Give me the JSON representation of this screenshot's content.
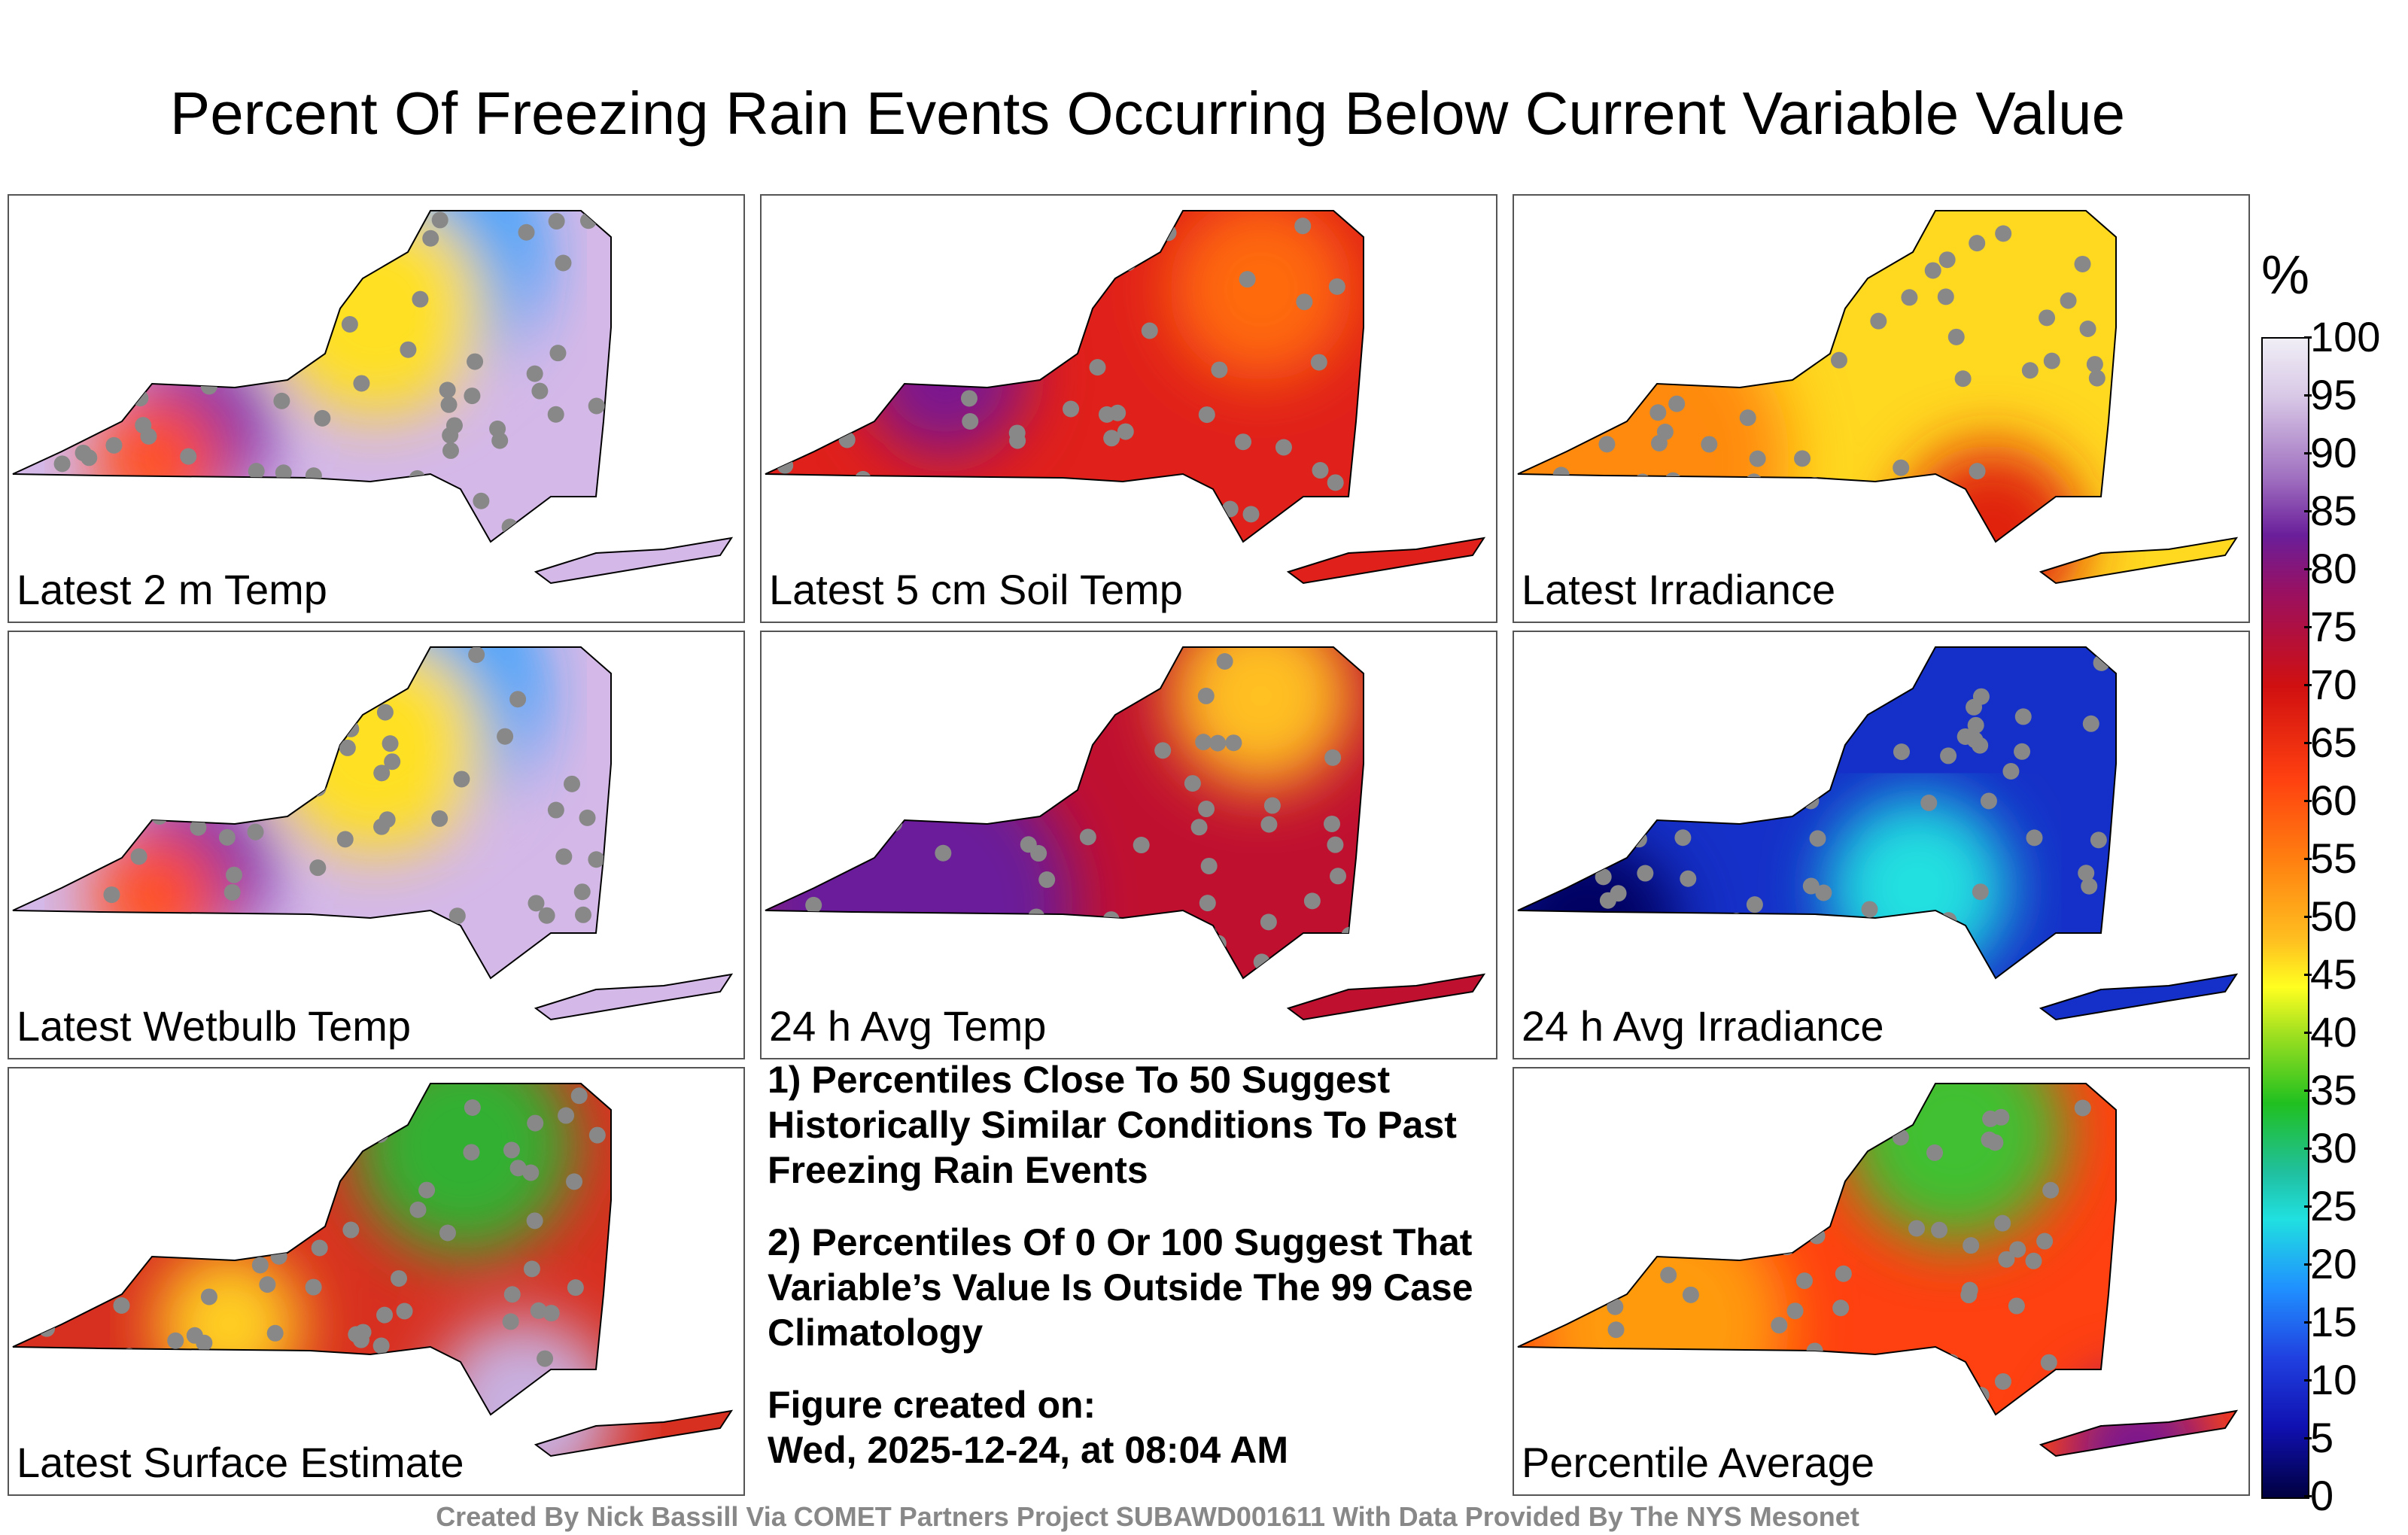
{
  "title": "Percent Of Freezing Rain Events Occurring Below Current Variable Value",
  "panels": [
    {
      "label": "Latest 2 m Temp",
      "scheme": "warmlow"
    },
    {
      "label": "Latest 5 cm Soil Temp",
      "scheme": "red"
    },
    {
      "label": "Latest Irradiance",
      "scheme": "yellow"
    },
    {
      "label": "Latest Wetbulb Temp",
      "scheme": "warmlow"
    },
    {
      "label": "24 h Avg Temp",
      "scheme": "redpurple"
    },
    {
      "label": "24 h Avg Irradiance",
      "scheme": "blue"
    },
    {
      "label": "Latest Surface Estimate",
      "scheme": "mixed"
    },
    {
      "label": "Percentile Average",
      "scheme": "orange"
    }
  ],
  "notes": {
    "note1": "1) Percentiles Close To 50 Suggest Historically Similar Conditions To Past Freezing Rain Events",
    "note2": "2) Percentiles Of 0 Or 100 Suggest That Variable’s Value Is Outside The 99 Case Climatology",
    "created_label": "Figure created on:",
    "created_date": "Wed, 2025-12-24, at 08:04 AM"
  },
  "credit": "Created By Nick Bassill Via COMET Partners Project SUBAWD001611 With Data Provided By The NYS Mesonet",
  "colorbar": {
    "unit": "%",
    "ticks": [
      "100",
      "95",
      "90",
      "85",
      "80",
      "75",
      "70",
      "65",
      "60",
      "55",
      "50",
      "45",
      "40",
      "35",
      "30",
      "25",
      "20",
      "15",
      "10",
      "5",
      "0"
    ]
  },
  "colors": {
    "panel_border": "#555555",
    "station": "#888888",
    "credit": "#888888"
  }
}
